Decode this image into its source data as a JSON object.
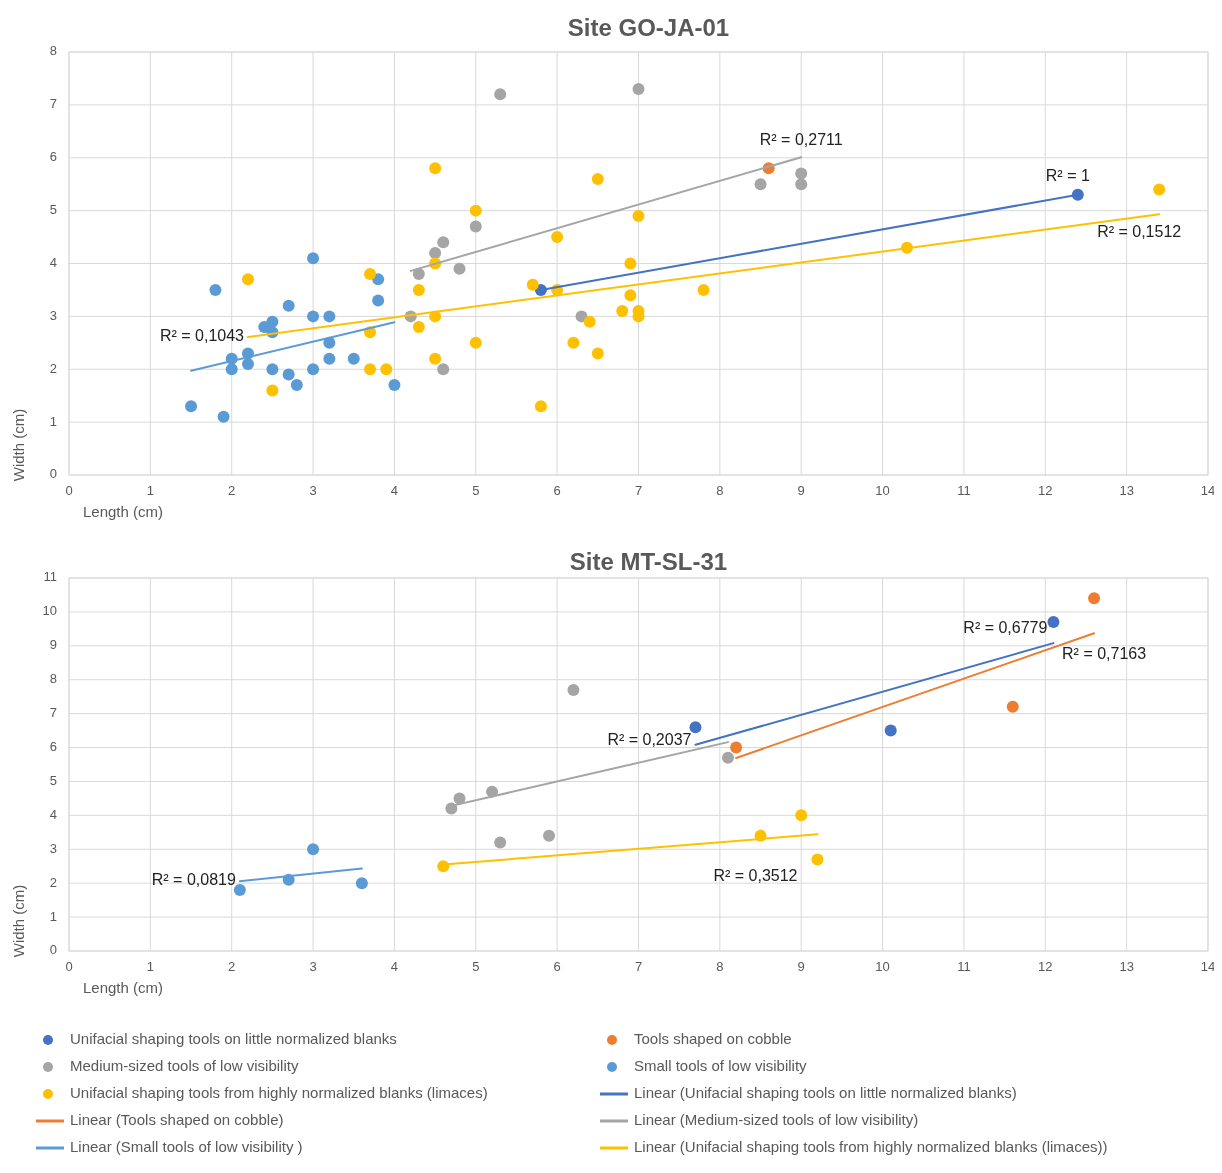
{
  "chart_data": [
    {
      "type": "scatter",
      "title": "Site GO-JA-01",
      "xlabel": "Length (cm)",
      "ylabel": "Width (cm)",
      "xlim": [
        0,
        14
      ],
      "xticks": [
        0,
        1,
        2,
        3,
        4,
        5,
        6,
        7,
        8,
        9,
        10,
        11,
        12,
        13,
        14
      ],
      "ylim": [
        0,
        8
      ],
      "yticks": [
        0,
        1,
        2,
        3,
        4,
        5,
        6,
        7,
        8
      ],
      "grid": true,
      "marker": "circle",
      "series": [
        {
          "color": "#4472c4",
          "x": [
            5.8,
            12.4
          ],
          "values": [
            3.5,
            5.3
          ]
        },
        {
          "color": "#ed7d31",
          "x": [
            8.6
          ],
          "values": [
            5.8
          ]
        },
        {
          "color": "#a5a5a5",
          "x": [
            5.3,
            5,
            4.6,
            4.5,
            4.3,
            4.8,
            4.2,
            4.6,
            7,
            8.5,
            9,
            9,
            6.3
          ],
          "values": [
            7.2,
            4.7,
            4.4,
            4.2,
            3.8,
            3.9,
            3,
            2,
            7.3,
            5.5,
            5.7,
            5.5,
            3
          ]
        },
        {
          "color": "#5b9bd5",
          "x": [
            1.5,
            1.9,
            1.8,
            3,
            3.8,
            3.8,
            2.7,
            3,
            3.2,
            2.4,
            2.5,
            2.5,
            3.2,
            2,
            2.2,
            2.2,
            2,
            2.5,
            3.2,
            3.5,
            2.7,
            2.8,
            3,
            4
          ],
          "values": [
            1.3,
            1.1,
            3.5,
            4.1,
            3.7,
            3.3,
            3.2,
            3,
            3,
            2.8,
            2.9,
            2.7,
            2.5,
            2.2,
            2.3,
            2.1,
            2,
            2,
            2.2,
            2.2,
            1.9,
            1.7,
            2,
            1.7
          ]
        },
        {
          "color": "#ffc000",
          "x": [
            2.2,
            2.5,
            3.7,
            3.7,
            3.7,
            3.9,
            4.3,
            4.3,
            4.5,
            4.5,
            4.5,
            4.5,
            5,
            5,
            6.5,
            7,
            6,
            6.9,
            5.7,
            6,
            6.9,
            7.8,
            6.4,
            6.8,
            7,
            7,
            6.2,
            6.5,
            5.8,
            10.3,
            13.4
          ],
          "values": [
            3.7,
            1.6,
            3.8,
            2.7,
            2,
            2,
            3.5,
            2.8,
            5.8,
            4,
            3,
            2.2,
            5,
            2.5,
            5.6,
            4.9,
            4.5,
            4,
            3.6,
            3.5,
            3.4,
            3.5,
            2.9,
            3.1,
            3.1,
            3,
            2.5,
            2.3,
            1.3,
            4.3,
            5.4
          ]
        },
        {
          "type": "line",
          "color": "#4472c4",
          "marker": "none",
          "x": [
            5.8,
            12.4
          ],
          "values": [
            3.5,
            5.3
          ]
        },
        {
          "type": "line",
          "color": "#a5a5a5",
          "marker": "none",
          "x": [
            4.2,
            9
          ],
          "values": [
            3.86,
            6.01
          ]
        },
        {
          "type": "line",
          "color": "#5b9bd5",
          "marker": "none",
          "x": [
            1.5,
            4
          ],
          "values": [
            1.97,
            2.89
          ]
        },
        {
          "type": "line",
          "color": "#ffc000",
          "marker": "none",
          "x": [
            2.2,
            13.4
          ],
          "values": [
            2.61,
            4.93
          ]
        }
      ],
      "annotations": [
        {
          "text": "R² = 0,1043",
          "x": 2.2,
          "y": 2.61
        },
        {
          "text": "R² = 0,2711",
          "x": 9,
          "y": 6.01
        },
        {
          "text": "R² = 1",
          "x": 12.4,
          "y": 5.3
        },
        {
          "text": "R² = 0,1512",
          "x": 13.4,
          "y": 4.93
        }
      ]
    },
    {
      "type": "scatter",
      "title": "Site MT-SL-31",
      "xlabel": "Length (cm)",
      "ylabel": "Width (cm)",
      "xlim": [
        0,
        14
      ],
      "xticks": [
        0,
        1,
        2,
        3,
        4,
        5,
        6,
        7,
        8,
        9,
        10,
        11,
        12,
        13,
        14
      ],
      "ylim": [
        0,
        11
      ],
      "yticks": [
        0,
        1,
        2,
        3,
        4,
        5,
        6,
        7,
        8,
        9,
        10,
        11
      ],
      "grid": true,
      "legend": "bottom",
      "marker": "circle",
      "series": [
        {
          "name": "Unifacial shaping tools on little normalized blanks",
          "color": "#4472c4",
          "x": [
            7.7,
            10.1,
            12.1
          ],
          "values": [
            6.6,
            6.5,
            9.7
          ]
        },
        {
          "name": "Tools shaped on cobble",
          "color": "#ed7d31",
          "x": [
            8.2,
            11.6,
            12.6
          ],
          "values": [
            6,
            7.2,
            10.4
          ]
        },
        {
          "name": "Medium-sized tools of low visibility",
          "color": "#a5a5a5",
          "x": [
            4.7,
            4.8,
            5.2,
            5.3,
            5.9,
            6.2,
            8.1
          ],
          "values": [
            4.2,
            4.5,
            4.7,
            3.2,
            3.4,
            7.7,
            5.7
          ]
        },
        {
          "name": "Small tools of low visibility",
          "color": "#5b9bd5",
          "x": [
            2.1,
            2.7,
            3,
            3.6
          ],
          "values": [
            1.8,
            2.1,
            3,
            2
          ]
        },
        {
          "name": "Unifacial shaping tools from highly normalized blanks (limaces)",
          "color": "#ffc000",
          "x": [
            4.6,
            8.5,
            9,
            9.2
          ],
          "values": [
            2.5,
            3.4,
            4,
            2.7
          ]
        },
        {
          "name": "Linear (Unifacial shaping tools on little normalized blanks)",
          "type": "line",
          "color": "#4472c4",
          "marker": "none",
          "x": [
            7.7,
            12.1
          ],
          "values": [
            6.08,
            9.08
          ]
        },
        {
          "name": "Linear (Tools shaped on cobble)",
          "type": "line",
          "color": "#ed7d31",
          "marker": "none",
          "x": [
            8.2,
            12.6
          ],
          "values": [
            5.69,
            9.37
          ]
        },
        {
          "name": "Linear (Medium-sized tools of low visibility)",
          "type": "line",
          "color": "#a5a5a5",
          "marker": "none",
          "x": [
            4.7,
            8.1
          ],
          "values": [
            4.28,
            6.16
          ]
        },
        {
          "name": "Linear (Small tools of low visibility )",
          "type": "line",
          "color": "#5b9bd5",
          "marker": "none",
          "x": [
            2.1,
            3.6
          ],
          "values": [
            2.06,
            2.43
          ]
        },
        {
          "name": "Linear (Unifacial shaping tools from highly normalized blanks (limaces))",
          "type": "line",
          "color": "#ffc000",
          "marker": "none",
          "x": [
            4.6,
            9.2
          ],
          "values": [
            2.55,
            3.44
          ]
        }
      ],
      "annotations": [
        {
          "text": "R² = 0,0819",
          "x": 2.1,
          "y": 2.06
        },
        {
          "text": "R² = 0,2037",
          "x": 7.7,
          "y": 6.08
        },
        {
          "text": "R² = 0,6779",
          "x": 12.1,
          "y": 9.08
        },
        {
          "text": "R² = 0,7163",
          "x": 12.6,
          "y": 9.37
        },
        {
          "text": "R² = 0,3512",
          "x": 9.2,
          "y": 3.44
        }
      ]
    }
  ]
}
